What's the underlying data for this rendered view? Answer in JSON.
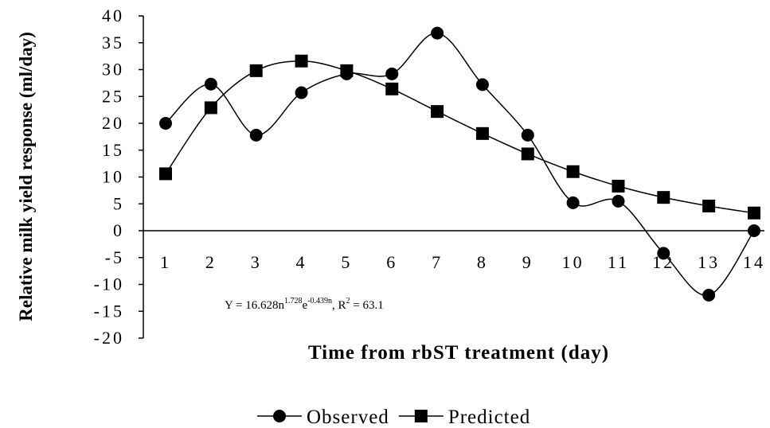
{
  "chart_data": {
    "type": "line",
    "y_label": "Relative milk yield response (ml/day)",
    "x_label": "Time from rbST treatment (day)",
    "annotation": [
      "Y = 16.628n",
      "1.728",
      "e",
      "-0.439n",
      ", R",
      "2",
      " = 63.1"
    ],
    "categories": [
      "1",
      "2",
      "3",
      "4",
      "5",
      "6",
      "7",
      "8",
      "9",
      "10",
      "11",
      "12",
      "13",
      "14"
    ],
    "series": [
      {
        "name": "Observed",
        "color": "#000000",
        "marker": "circle",
        "values": [
          20,
          27.3,
          17.8,
          25.7,
          29.2,
          29.2,
          36.8,
          27.2,
          17.8,
          5.2,
          5.5,
          -4.2,
          -12,
          0
        ]
      },
      {
        "name": "Predicted",
        "color": "#000000",
        "marker": "square",
        "values": [
          10.6,
          22.9,
          29.8,
          31.6,
          29.8,
          26.4,
          22.2,
          18.1,
          14.3,
          11.0,
          8.3,
          6.2,
          4.6,
          3.3
        ]
      }
    ],
    "ylim": [
      -20,
      40
    ],
    "yticks": [
      -20,
      -15,
      -10,
      -5,
      0,
      5,
      10,
      15,
      20,
      25,
      30,
      35,
      40
    ],
    "smooth": true,
    "legend": "bottom"
  }
}
